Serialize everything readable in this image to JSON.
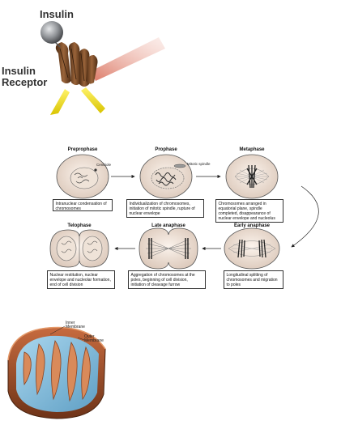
{
  "insulin": {
    "ligand_label": "Insulin",
    "receptor_label_line1": "Insulin",
    "receptor_label_line2": "Receptor"
  },
  "mitosis": {
    "phases": [
      {
        "title": "Preprophase",
        "inner_label": "Centriole",
        "caption": "Intranuclear condensation of chromosomes"
      },
      {
        "title": "Prophase",
        "inner_label": "Mitotic spindle",
        "caption": "Individualization of chromosomes, initiation of mitotic spindle, rupture of nuclear envelope"
      },
      {
        "title": "Metaphase",
        "caption": "Chromosomes arranged in equatorial plane, spindle completed, disappearance of nuclear envelope and nucleolus"
      },
      {
        "title": "Early anaphase",
        "caption": "Longitudinal splitting of chromosomes and migration to poles"
      },
      {
        "title": "Late anaphase",
        "caption": "Aggregation of chromosomes at the poles, beginning of cell division, initiation of cleavage furrow"
      },
      {
        "title": "Telophase",
        "caption": "Nuclear restitution, nuclear envelope and nucleolar formation, end of cell division"
      }
    ]
  },
  "mitochondrion": {
    "inner_label_line1": "Inner",
    "inner_label_line2": "Membrane",
    "outer_label_line1": "Outer",
    "outer_label_line2": "Membrane"
  },
  "colors": {
    "insulin_ball": "#8f9296",
    "receptor_brown": "#7a4a26",
    "receptor_yellow": "#f2e21a",
    "mito_outer": "#a8552e",
    "mito_inner": "#7fb9d8"
  }
}
